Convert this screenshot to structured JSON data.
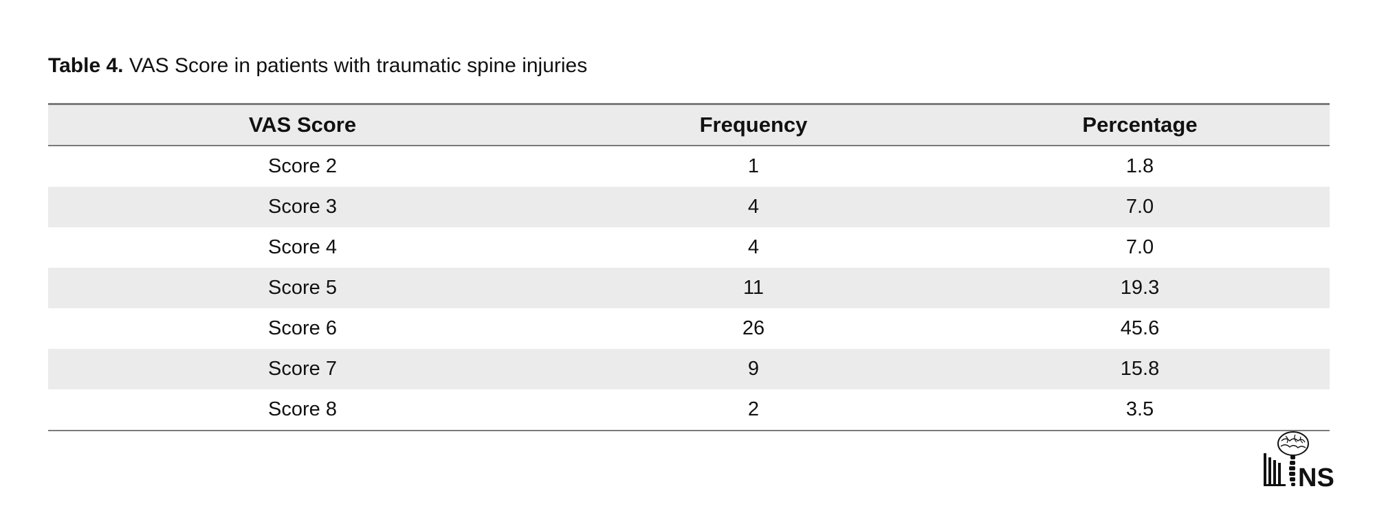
{
  "caption": {
    "label": "Table 4.",
    "text": " VAS Score in patients with traumatic spine injuries"
  },
  "table": {
    "headers": [
      "VAS Score",
      "Frequency",
      "Percentage"
    ],
    "rows": [
      [
        "Score 2",
        "1",
        "1.8"
      ],
      [
        "Score 3",
        "4",
        "7.0"
      ],
      [
        "Score 4",
        "4",
        "7.0"
      ],
      [
        "Score 5",
        "11",
        "19.3"
      ],
      [
        "Score 6",
        "26",
        "45.6"
      ],
      [
        "Score 7",
        "9",
        "15.8"
      ],
      [
        "Score 8",
        "2",
        "3.5"
      ]
    ]
  },
  "logo": {
    "icon": "brain-spine-logo-icon",
    "text": "NS"
  }
}
